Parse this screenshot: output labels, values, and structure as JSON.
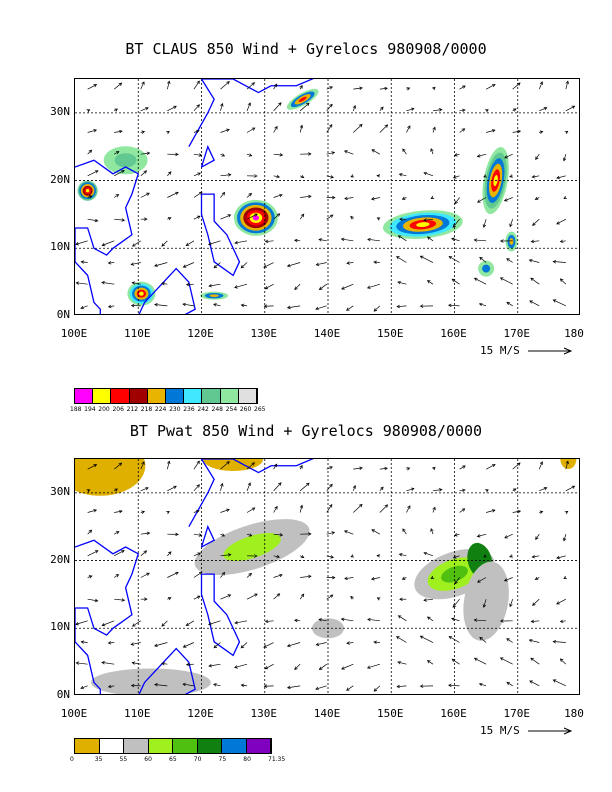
{
  "chart_data": [
    {
      "type": "heatmap",
      "title": "BT CLAUS 850 Wind + Gyrelocs 980908/0000",
      "x_ticks": [
        "100E",
        "110E",
        "120E",
        "130E",
        "140E",
        "150E",
        "160E",
        "170E",
        "180"
      ],
      "y_ticks": [
        "0N",
        "10N",
        "20N",
        "30N"
      ],
      "x_range": [
        100,
        180
      ],
      "y_range": [
        0,
        35
      ],
      "vector_reference": "15 M/S",
      "legend": {
        "labels": [
          "188",
          "194",
          "200",
          "206",
          "212",
          "218",
          "224",
          "230",
          "236",
          "242",
          "248",
          "254",
          "260",
          "265"
        ],
        "colors": [
          "#ff00ff",
          "#ffff00",
          "#ff0000",
          "#a00000",
          "#e8b400",
          "#0078d8",
          "#40e8ff",
          "#60c890",
          "#90e8a0",
          "#e0e0e0"
        ]
      },
      "features": [
        {
          "lon": 128.6,
          "lat": 14.5,
          "peak": "188"
        },
        {
          "lon": 155,
          "lat": 13.5,
          "peak": "194"
        },
        {
          "lon": 166.5,
          "lat": 20,
          "peak": "194"
        },
        {
          "lon": 110.5,
          "lat": 3.3,
          "peak": "194"
        },
        {
          "lon": 102,
          "lat": 18.5,
          "peak": "200"
        }
      ]
    },
    {
      "type": "heatmap",
      "title": "BT Pwat 850 Wind + Gyrelocs 980908/0000",
      "x_ticks": [
        "100E",
        "110E",
        "120E",
        "130E",
        "140E",
        "150E",
        "160E",
        "170E",
        "180"
      ],
      "y_ticks": [
        "0N",
        "10N",
        "20N",
        "30N"
      ],
      "x_range": [
        100,
        180
      ],
      "y_range": [
        0,
        35
      ],
      "vector_reference": "15 M/S",
      "legend": {
        "labels": [
          "0",
          "35",
          "55",
          "60",
          "65",
          "70",
          "75",
          "80",
          "71.35"
        ],
        "colors": [
          "#e0b000",
          "#ffffff",
          "#c0c0c0",
          "#a0f020",
          "#50c010",
          "#108010",
          "#0078d8",
          "#8000c0"
        ]
      }
    }
  ]
}
